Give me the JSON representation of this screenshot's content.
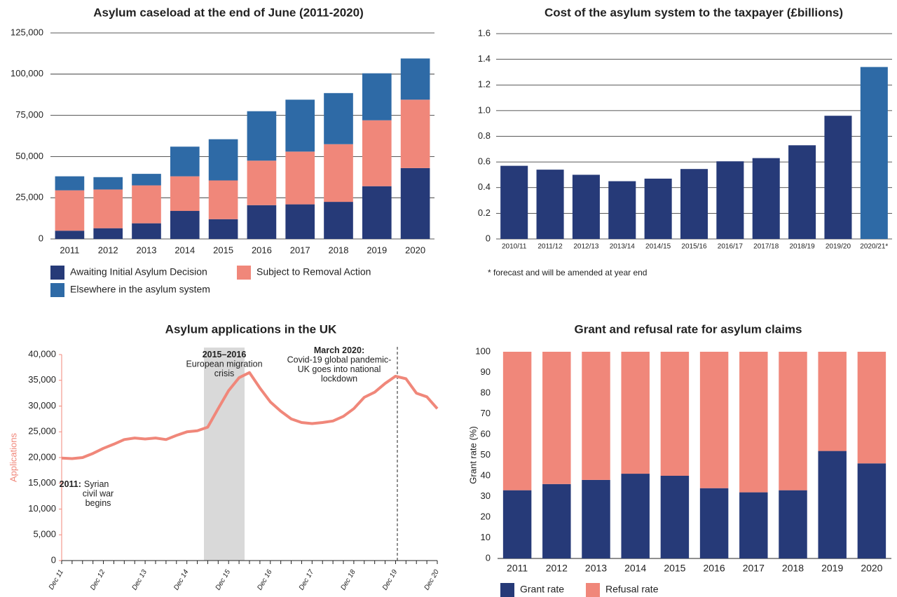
{
  "chart_data": [
    {
      "type": "bar",
      "title": "Asylum caseload at the end of June (2011-2020)",
      "categories": [
        "2011",
        "2012",
        "2013",
        "2014",
        "2015",
        "2016",
        "2017",
        "2018",
        "2019",
        "2020"
      ],
      "series": [
        {
          "name": "Awaiting Initial Asylum Decision",
          "color": "#263a78",
          "values": [
            5000,
            6500,
            9500,
            17000,
            12000,
            20500,
            21000,
            22500,
            32000,
            43000
          ]
        },
        {
          "name": "Subject to Removal Action",
          "color": "#f0877a",
          "values": [
            24500,
            23500,
            23000,
            21000,
            23500,
            27000,
            32000,
            35000,
            40000,
            41500
          ]
        },
        {
          "name": "Elsewhere in the asylum system",
          "color": "#2e6aa6",
          "values": [
            8500,
            7500,
            7000,
            18000,
            25000,
            30000,
            31500,
            31000,
            28500,
            25000
          ]
        }
      ],
      "ylim": [
        0,
        125000
      ],
      "yticks": [
        0,
        {
          "value": 25000,
          "label": "25,000"
        },
        {
          "value": 50000,
          "label": "50,000"
        },
        {
          "value": 75000,
          "label": "75,000"
        },
        {
          "value": 100000,
          "label": "100,000"
        },
        {
          "value": 125000,
          "label": "125,000"
        }
      ],
      "grid": true
    },
    {
      "type": "bar",
      "title": "Cost of the asylum system to the taxpayer (£billions)",
      "categories": [
        "2010/11",
        "2011/12",
        "2012/13",
        "2013/14",
        "2014/15",
        "2015/16",
        "2016/17",
        "2017/18",
        "2018/19",
        "2019/20",
        "2020/21*"
      ],
      "values": [
        0.57,
        0.54,
        0.5,
        0.45,
        0.47,
        0.545,
        0.605,
        0.63,
        0.73,
        0.96,
        1.34
      ],
      "colors": [
        "#263a78",
        "#263a78",
        "#263a78",
        "#263a78",
        "#263a78",
        "#263a78",
        "#263a78",
        "#263a78",
        "#263a78",
        "#263a78",
        "#2e6aa6"
      ],
      "ylim": [
        0,
        1.6
      ],
      "yticks": [
        0,
        0.2,
        0.4,
        0.6,
        0.8,
        {
          "value": 1,
          "label": "1.0"
        },
        1.2,
        1.4,
        1.6
      ],
      "grid": true,
      "note": "* forecast and will be amended at year end"
    },
    {
      "type": "line",
      "title": "Asylum applications in the UK",
      "y_label": "Applications",
      "categories": [
        "Dec 11",
        null,
        null,
        null,
        "Dec 12",
        null,
        null,
        null,
        "Dec 13",
        null,
        null,
        null,
        "Dec 14",
        null,
        null,
        null,
        "Dec 15",
        null,
        null,
        null,
        "Dec 16",
        null,
        null,
        null,
        "Dec 17",
        null,
        null,
        null,
        "Dec 18",
        null,
        null,
        null,
        "Dec 19",
        null,
        null,
        null,
        "Dec 20"
      ],
      "values": [
        19900,
        19800,
        20000,
        20800,
        21800,
        22600,
        23500,
        23800,
        23600,
        23800,
        23500,
        24300,
        25000,
        25200,
        25900,
        29500,
        33000,
        35500,
        36500,
        33500,
        30800,
        29000,
        27500,
        26800,
        26600,
        26800,
        27100,
        28000,
        29500,
        31700,
        32700,
        34400,
        35800,
        35300,
        32500,
        31800,
        29500
      ],
      "color": "#f0877a",
      "ylim": [
        0,
        40000
      ],
      "yticks": [
        0,
        {
          "value": 5000,
          "label": "5,000"
        },
        {
          "value": 10000,
          "label": "10,000"
        },
        {
          "value": 15000,
          "label": "15,000"
        },
        {
          "value": 20000,
          "label": "20,000"
        },
        {
          "value": 25000,
          "label": "25,000"
        },
        {
          "value": 30000,
          "label": "30,000"
        },
        {
          "value": 35000,
          "label": "35,000"
        },
        {
          "value": 40000,
          "label": "40,000"
        }
      ],
      "grid": false,
      "annotations": [
        {
          "bold": "2011:",
          "lines": [
            "Syrian",
            "civil war",
            "begins"
          ]
        },
        {
          "bold": "2015–2016",
          "lines": [
            "European migration",
            "crisis"
          ]
        },
        {
          "bold": "March 2020:",
          "lines": [
            "Covid-19 global pandemic-",
            "UK goes into national",
            "lockdown"
          ]
        }
      ]
    },
    {
      "type": "bar",
      "title": "Grant and refusal rate for asylum claims",
      "y_label": "Grant rate (%)",
      "categories": [
        "2011",
        "2012",
        "2013",
        "2014",
        "2015",
        "2016",
        "2017",
        "2018",
        "2019",
        "2020"
      ],
      "series": [
        {
          "name": "Grant rate",
          "color": "#263a78",
          "values": [
            33,
            36,
            38,
            41,
            40,
            34,
            32,
            33,
            52,
            46
          ]
        },
        {
          "name": "Refusal rate",
          "color": "#f0877a",
          "values": [
            67,
            64,
            62,
            59,
            60,
            66,
            68,
            67,
            48,
            54
          ]
        }
      ],
      "ylim": [
        0,
        100
      ],
      "yticks": [
        0,
        10,
        20,
        30,
        40,
        50,
        60,
        70,
        80,
        90,
        100
      ],
      "grid": false
    }
  ]
}
